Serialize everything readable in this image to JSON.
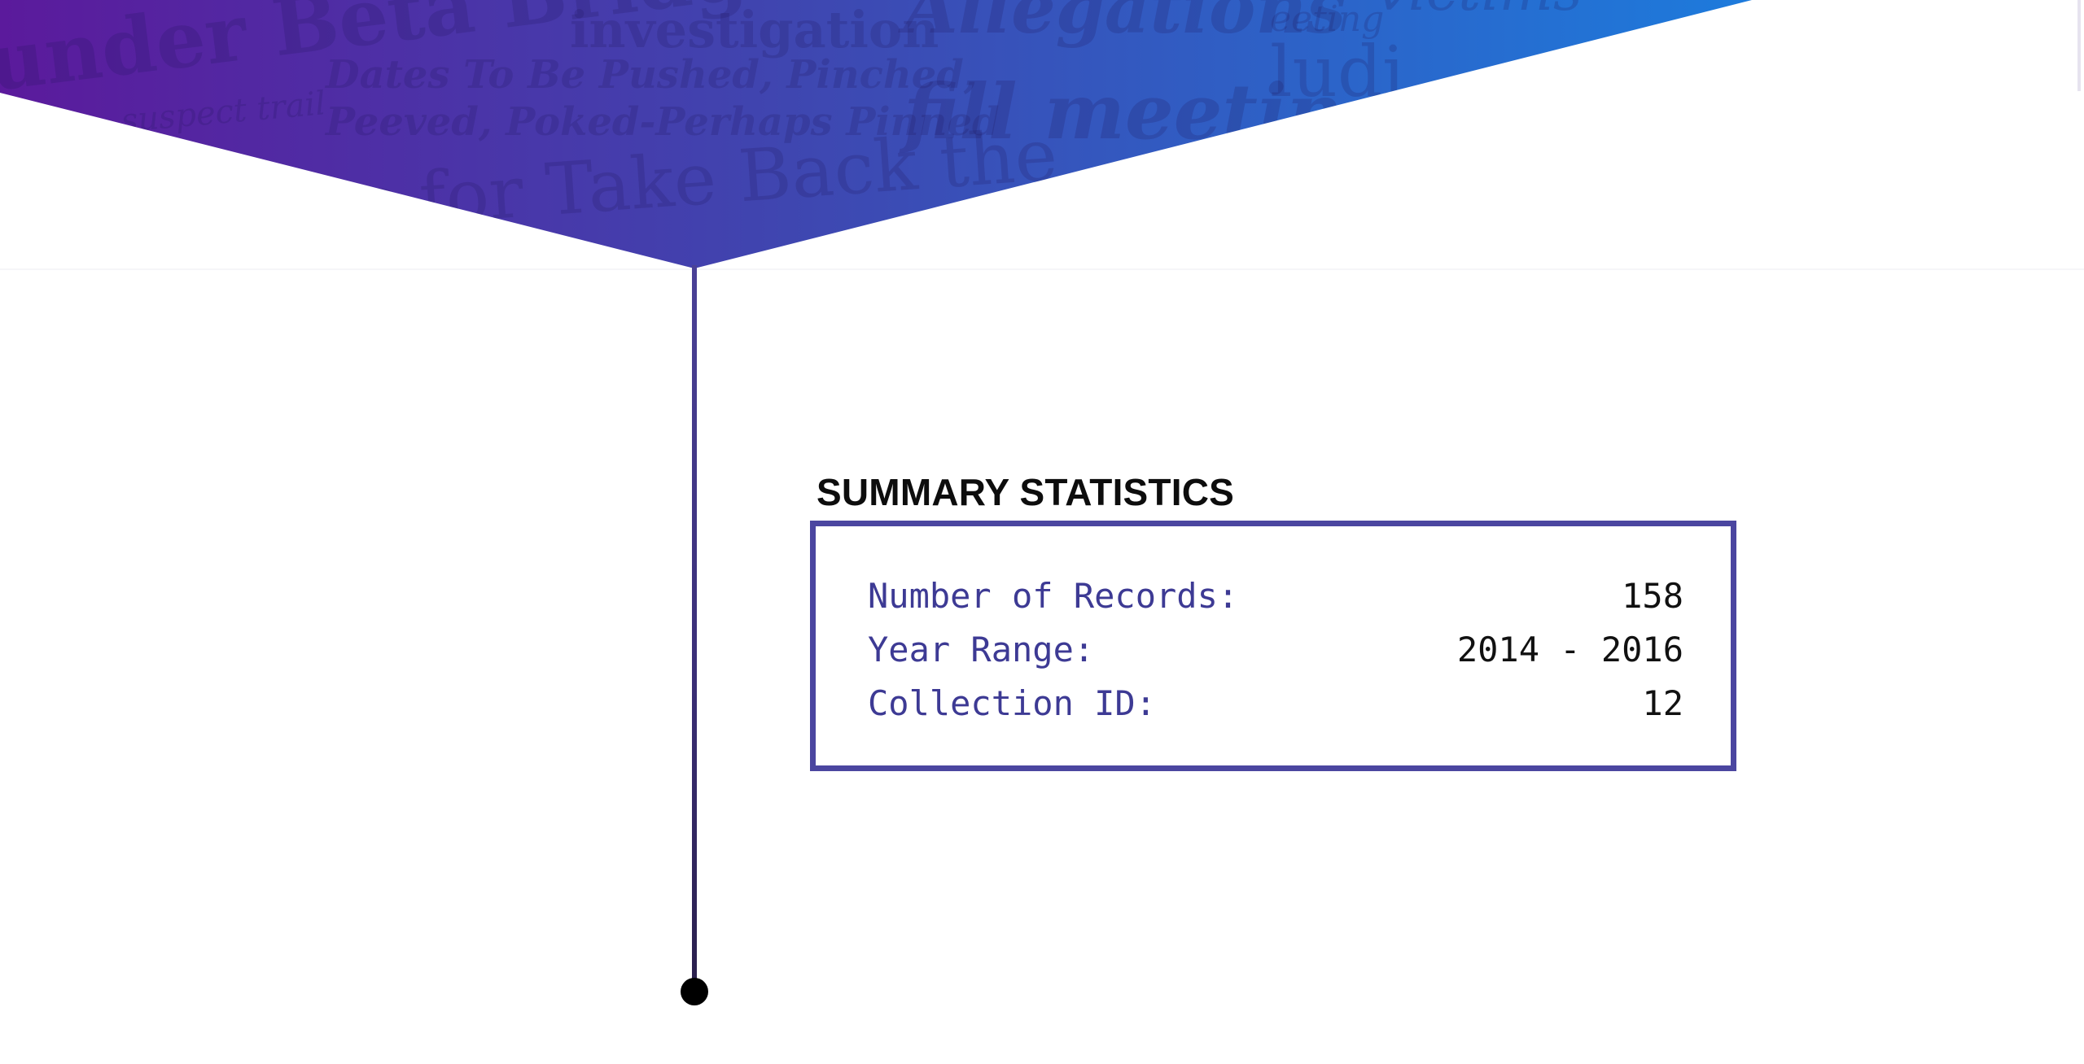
{
  "header": {
    "background_headlines": [
      "under Beta Bridge",
      "investigation",
      "Allegations",
      "victims",
      "suspect trail",
      "Dates To Be Pushed, Pinched,",
      "Peeved, Poked-Perhaps Pinned",
      "fill meeting",
      "ludi",
      "eeting",
      "pots for Take Back the"
    ],
    "colors": {
      "gradient_start": "#5b1a9c",
      "gradient_mid": "#3f46b0",
      "gradient_end": "#1d7bdc"
    }
  },
  "timeline": {
    "line_color": "#4a4197",
    "dot_color": "#000000"
  },
  "summary": {
    "title": "SUMMARY STATISTICS",
    "border_color": "#4b46a0",
    "label_color": "#3d3a94",
    "rows": [
      {
        "label": "Number of Records:",
        "value": "158"
      },
      {
        "label": "Year Range:",
        "value": "2014 - 2016"
      },
      {
        "label": "Collection ID:",
        "value": "12"
      }
    ]
  }
}
